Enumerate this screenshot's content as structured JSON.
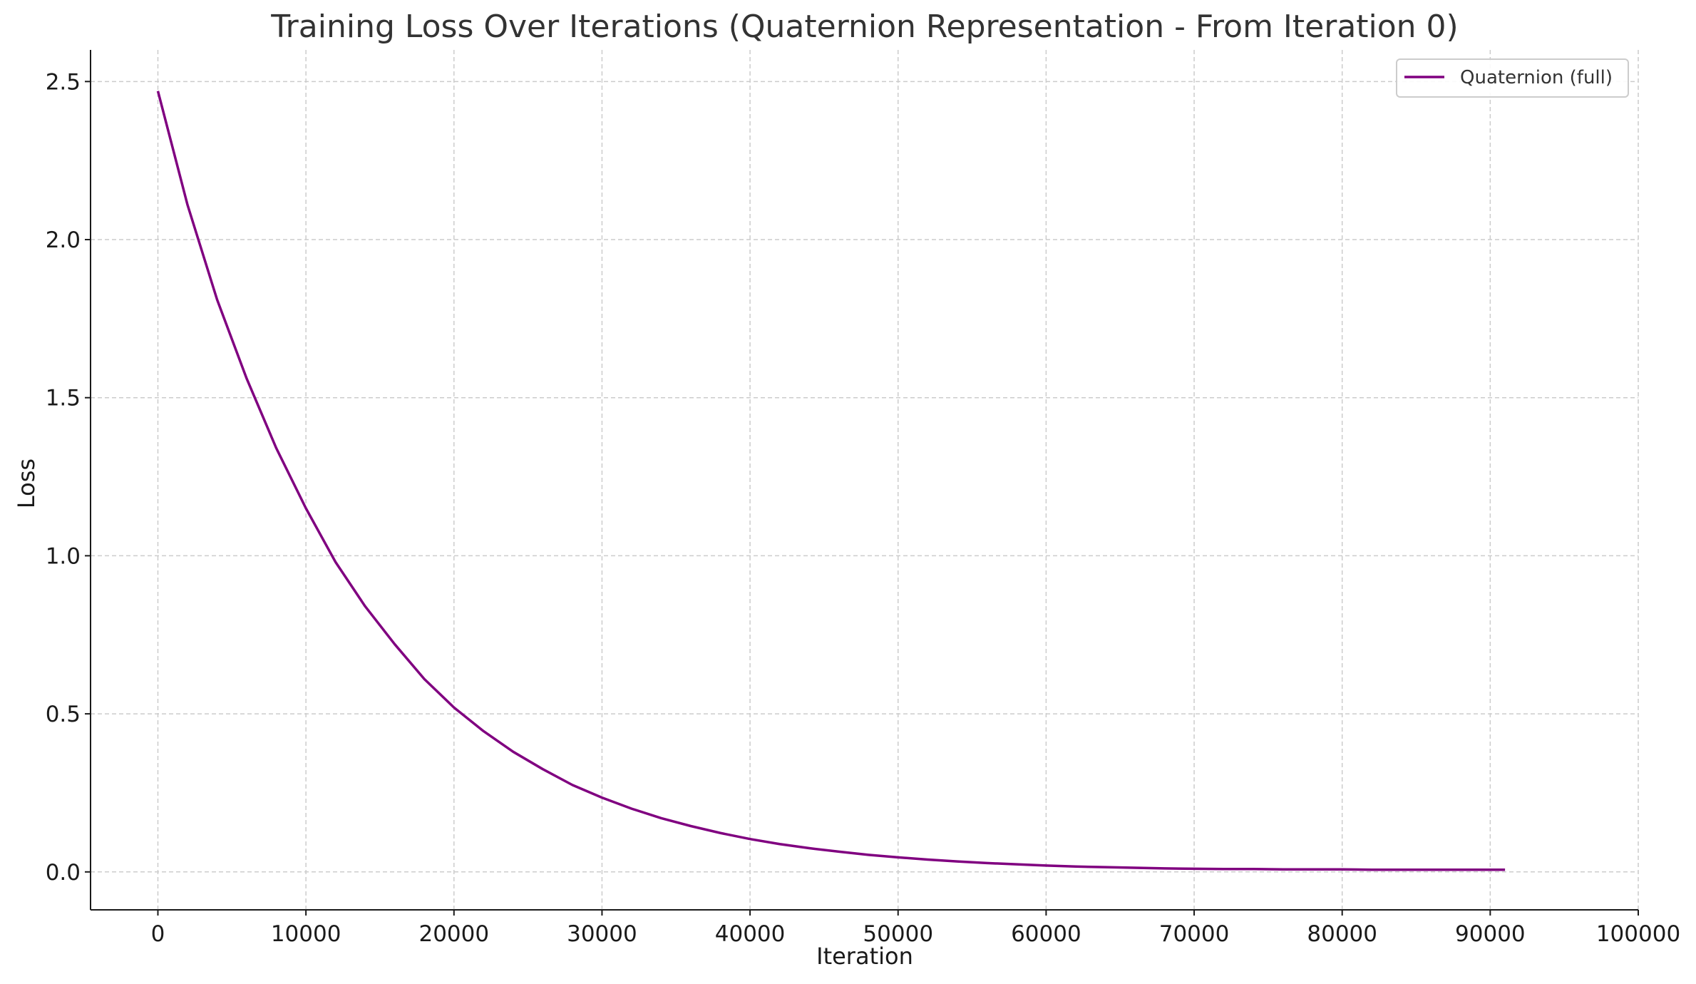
{
  "chart_data": {
    "type": "line",
    "title": "Training Loss Over Iterations (Quaternion Representation - From Iteration 0)",
    "xlabel": "Iteration",
    "ylabel": "Loss",
    "xlim": [
      -4550,
      100000
    ],
    "ylim": [
      -0.12,
      2.6
    ],
    "xticks": [
      0,
      10000,
      20000,
      30000,
      40000,
      50000,
      60000,
      70000,
      80000,
      90000,
      100000
    ],
    "yticks": [
      0.0,
      0.5,
      1.0,
      1.5,
      2.0,
      2.5
    ],
    "ytick_labels": [
      "0.0",
      "0.5",
      "1.0",
      "1.5",
      "2.0",
      "2.5"
    ],
    "grid": true,
    "grid_style": "dashed",
    "legend_position": "top-right",
    "series": [
      {
        "name": "Quaternion (full)",
        "color": "#800080",
        "x": [
          0,
          2000,
          4000,
          6000,
          8000,
          10000,
          12000,
          14000,
          16000,
          18000,
          20000,
          22000,
          24000,
          26000,
          28000,
          30000,
          32000,
          34000,
          36000,
          38000,
          40000,
          42000,
          44000,
          46000,
          48000,
          50000,
          52000,
          54000,
          56000,
          58000,
          60000,
          62000,
          64000,
          66000,
          68000,
          70000,
          72000,
          74000,
          76000,
          78000,
          80000,
          82000,
          84000,
          86000,
          88000,
          90000,
          91000
        ],
        "y": [
          2.47,
          2.11,
          1.81,
          1.56,
          1.34,
          1.15,
          0.98,
          0.84,
          0.72,
          0.61,
          0.52,
          0.445,
          0.38,
          0.325,
          0.275,
          0.235,
          0.2,
          0.17,
          0.145,
          0.123,
          0.104,
          0.088,
          0.075,
          0.064,
          0.054,
          0.046,
          0.039,
          0.033,
          0.028,
          0.024,
          0.02,
          0.017,
          0.015,
          0.013,
          0.011,
          0.01,
          0.009,
          0.009,
          0.008,
          0.008,
          0.008,
          0.007,
          0.007,
          0.007,
          0.007,
          0.007,
          0.007
        ]
      }
    ]
  }
}
